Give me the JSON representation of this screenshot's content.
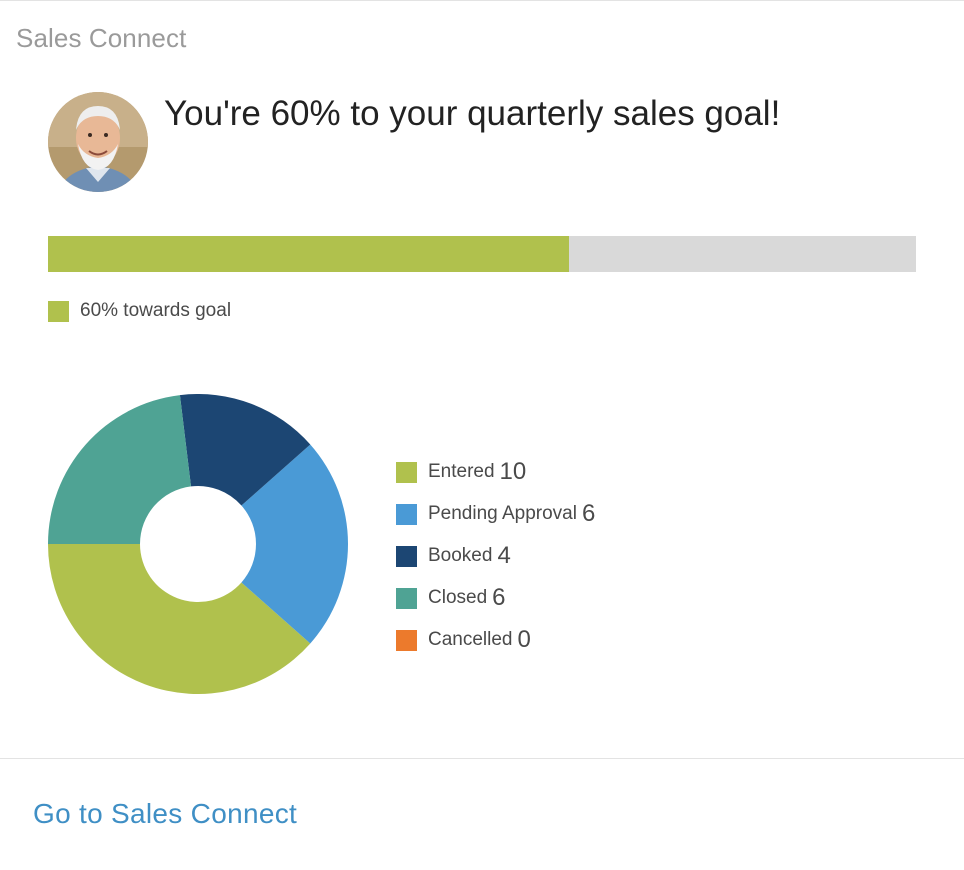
{
  "card": {
    "title": "Sales Connect"
  },
  "goal": {
    "headline": "You're 60% to your quarterly sales goal!",
    "progress_fraction": 0.6,
    "legend_label": "60% towards goal",
    "fill_color": "#b0c14d",
    "track_color": "#d9d9d9"
  },
  "chart_data": {
    "type": "pie",
    "donut": true,
    "categories": [
      "Entered",
      "Pending Approval",
      "Booked",
      "Closed",
      "Cancelled"
    ],
    "values": [
      10,
      6,
      4,
      6,
      0
    ],
    "colors": [
      "#b0c14d",
      "#4a9ad6",
      "#1c4673",
      "#4fa394",
      "#ec7a2c"
    ],
    "legend_position": "right"
  },
  "legend": [
    {
      "name": "Entered",
      "count": "10",
      "color": "#b0c14d"
    },
    {
      "name": "Pending Approval",
      "count": "6",
      "color": "#4a9ad6"
    },
    {
      "name": "Booked",
      "count": "4",
      "color": "#1c4673"
    },
    {
      "name": "Closed",
      "count": "6",
      "color": "#4fa394"
    },
    {
      "name": "Cancelled",
      "count": "0",
      "color": "#ec7a2c"
    }
  ],
  "footer": {
    "link_label": "Go to Sales Connect",
    "link_color": "#3f8fc5"
  }
}
